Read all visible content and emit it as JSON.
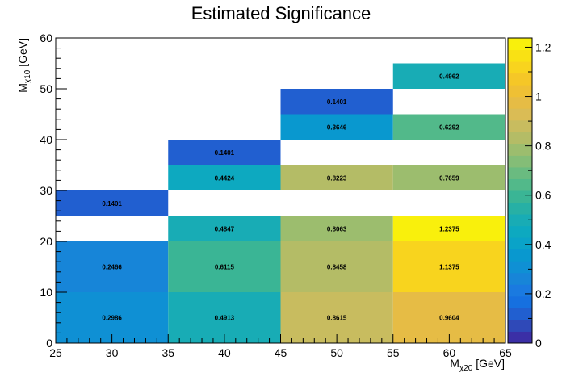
{
  "chart_data": {
    "type": "heatmap",
    "title": "Estimated Significance",
    "xlabel": {
      "main": "M",
      "sub": "χ20",
      "unit": " [GeV]"
    },
    "ylabel": {
      "main": "M",
      "sub": "χ10",
      "unit": " [GeV]"
    },
    "xlim": [
      25,
      65
    ],
    "ylim": [
      0,
      60
    ],
    "x_major_ticks": [
      25,
      30,
      35,
      40,
      45,
      50,
      55,
      60,
      65
    ],
    "y_major_ticks": [
      0,
      10,
      20,
      30,
      40,
      50,
      60
    ],
    "zlim": [
      0,
      1.2375
    ],
    "z_ticks": [
      0,
      0.2,
      0.4,
      0.6,
      0.8,
      1,
      1.2
    ],
    "cells": [
      {
        "x0": 25,
        "x1": 35,
        "y0": 0,
        "y1": 10,
        "value": 0.2986,
        "label": "0.2986"
      },
      {
        "x0": 25,
        "x1": 35,
        "y0": 10,
        "y1": 20,
        "value": 0.2466,
        "label": "0.2466"
      },
      {
        "x0": 25,
        "x1": 35,
        "y0": 25,
        "y1": 30,
        "value": 0.1401,
        "label": "0.1401"
      },
      {
        "x0": 35,
        "x1": 45,
        "y0": 0,
        "y1": 10,
        "value": 0.4913,
        "label": "0.4913"
      },
      {
        "x0": 35,
        "x1": 45,
        "y0": 10,
        "y1": 20,
        "value": 0.6115,
        "label": "0.6115"
      },
      {
        "x0": 35,
        "x1": 45,
        "y0": 20,
        "y1": 25,
        "value": 0.4847,
        "label": "0.4847"
      },
      {
        "x0": 35,
        "x1": 45,
        "y0": 30,
        "y1": 35,
        "value": 0.4424,
        "label": "0.4424"
      },
      {
        "x0": 35,
        "x1": 45,
        "y0": 35,
        "y1": 40,
        "value": 0.1401,
        "label": "0.1401"
      },
      {
        "x0": 45,
        "x1": 55,
        "y0": 0,
        "y1": 10,
        "value": 0.8615,
        "label": "0.8615"
      },
      {
        "x0": 45,
        "x1": 55,
        "y0": 10,
        "y1": 20,
        "value": 0.8458,
        "label": "0.8458"
      },
      {
        "x0": 45,
        "x1": 55,
        "y0": 20,
        "y1": 25,
        "value": 0.8063,
        "label": "0.8063"
      },
      {
        "x0": 45,
        "x1": 55,
        "y0": 30,
        "y1": 35,
        "value": 0.8223,
        "label": "0.8223"
      },
      {
        "x0": 45,
        "x1": 55,
        "y0": 40,
        "y1": 45,
        "value": 0.3646,
        "label": "0.3646"
      },
      {
        "x0": 45,
        "x1": 55,
        "y0": 45,
        "y1": 50,
        "value": 0.1401,
        "label": "0.1401"
      },
      {
        "x0": 55,
        "x1": 65,
        "y0": 0,
        "y1": 10,
        "value": 0.9604,
        "label": "0.9604"
      },
      {
        "x0": 55,
        "x1": 65,
        "y0": 10,
        "y1": 20,
        "value": 1.1375,
        "label": "1.1375"
      },
      {
        "x0": 55,
        "x1": 65,
        "y0": 20,
        "y1": 25,
        "value": 1.2375,
        "label": "1.2375"
      },
      {
        "x0": 55,
        "x1": 65,
        "y0": 30,
        "y1": 35,
        "value": 0.7659,
        "label": "0.7659"
      },
      {
        "x0": 55,
        "x1": 65,
        "y0": 40,
        "y1": 45,
        "value": 0.6292,
        "label": "0.6292"
      },
      {
        "x0": 55,
        "x1": 65,
        "y0": 50,
        "y1": 55,
        "value": 0.4962,
        "label": "0.4962"
      }
    ],
    "palette": [
      "#3b2fa6",
      "#2f49b8",
      "#215fd0",
      "#1670e0",
      "#1a7ae0",
      "#1785d8",
      "#0f90d4",
      "#0998cf",
      "#0aa3c8",
      "#0da9c0",
      "#18acb5",
      "#27b0a5",
      "#3ab595",
      "#52b98a",
      "#6abb80",
      "#84bd77",
      "#9cbd6e",
      "#b4bc66",
      "#c8bc5f",
      "#dabc55",
      "#e6bc45",
      "#efc034",
      "#f5c727",
      "#f8d41e",
      "#f9e114",
      "#f9f00c"
    ],
    "legend": "right"
  }
}
